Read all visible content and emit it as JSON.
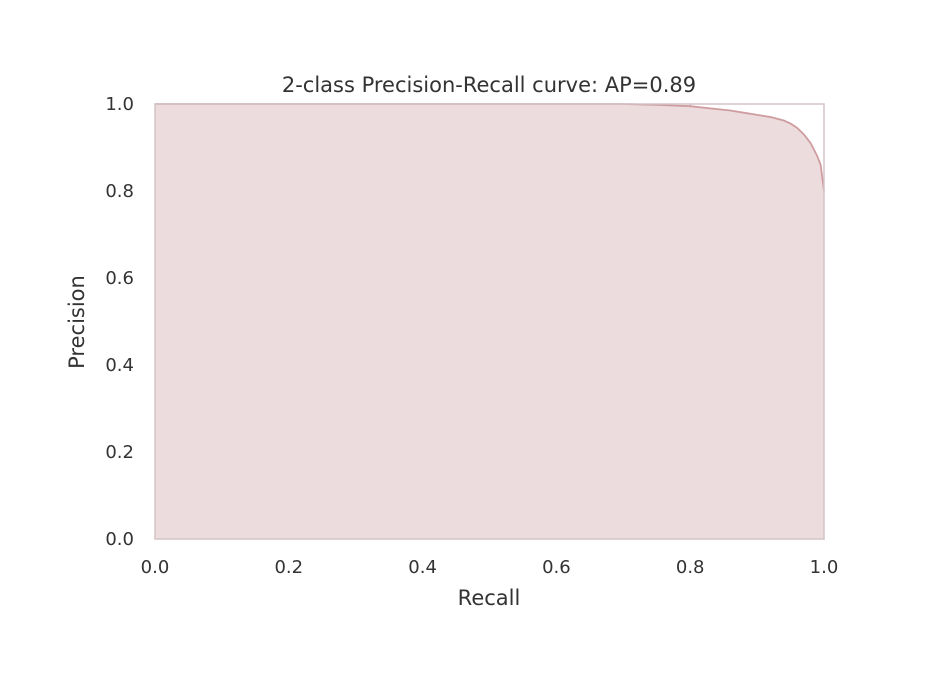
{
  "chart_data": {
    "type": "area",
    "title": "2-class Precision-Recall curve: AP=0.89",
    "xlabel": "Recall",
    "ylabel": "Precision",
    "xlim": [
      0.0,
      1.0
    ],
    "ylim": [
      0.0,
      1.0
    ],
    "xticks": [
      0.0,
      0.2,
      0.4,
      0.6,
      0.8,
      1.0
    ],
    "yticks": [
      0.0,
      0.2,
      0.4,
      0.6,
      0.8,
      1.0
    ],
    "xtick_labels": [
      "0.0",
      "0.2",
      "0.4",
      "0.6",
      "0.8",
      "1.0"
    ],
    "ytick_labels": [
      "0.0",
      "0.2",
      "0.4",
      "0.6",
      "0.8",
      "1.0"
    ],
    "grid": true,
    "colors": {
      "fill": "#eddcdd",
      "line": "#cf9da0",
      "grid": "#c8b0b2",
      "frame": "#d3c4c5"
    },
    "series": [
      {
        "x": [
          0.0,
          0.7,
          0.75,
          0.8,
          0.83,
          0.86,
          0.88,
          0.9,
          0.92,
          0.94,
          0.95,
          0.96,
          0.97,
          0.98,
          0.99,
          0.995,
          1.0
        ],
        "y": [
          1.0,
          1.0,
          0.998,
          0.995,
          0.99,
          0.985,
          0.98,
          0.975,
          0.97,
          0.962,
          0.955,
          0.945,
          0.93,
          0.91,
          0.88,
          0.86,
          0.8
        ]
      }
    ]
  }
}
